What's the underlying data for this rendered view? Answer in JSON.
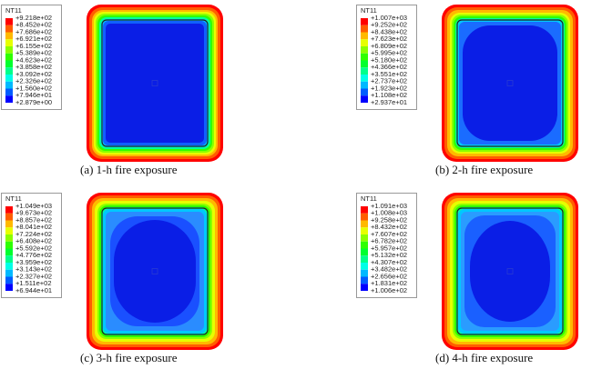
{
  "panels": [
    {
      "legend": {
        "title": "NT11",
        "labels": [
          "+9.218e+02",
          "+8.452e+02",
          "+7.686e+02",
          "+6.921e+02",
          "+6.155e+02",
          "+5.389e+02",
          "+4.623e+02",
          "+3.858e+02",
          "+3.092e+02",
          "+2.326e+02",
          "+1.560e+02",
          "+7.946e+01",
          "+2.879e+00"
        ]
      },
      "caption": "(a) 1-h fire exposure"
    },
    {
      "legend": {
        "title": "NT11",
        "labels": [
          "+1.007e+03",
          "+9.252e+02",
          "+8.438e+02",
          "+7.623e+02",
          "+6.809e+02",
          "+5.995e+02",
          "+5.180e+02",
          "+4.366e+02",
          "+3.551e+02",
          "+2.737e+02",
          "+1.923e+02",
          "+1.108e+02",
          "+2.937e+01"
        ]
      },
      "caption": "(b) 2-h fire exposure"
    },
    {
      "legend": {
        "title": "NT11",
        "labels": [
          "+1.049e+03",
          "+9.673e+02",
          "+8.857e+02",
          "+8.041e+02",
          "+7.224e+02",
          "+6.408e+02",
          "+5.592e+02",
          "+4.776e+02",
          "+3.959e+02",
          "+3.143e+02",
          "+2.327e+02",
          "+1.511e+02",
          "+6.944e+01"
        ]
      },
      "caption": "(c) 3-h fire exposure"
    },
    {
      "legend": {
        "title": "NT11",
        "labels": [
          "+1.091e+03",
          "+1.008e+03",
          "+9.258e+02",
          "+8.432e+02",
          "+7.607e+02",
          "+6.782e+02",
          "+5.957e+02",
          "+5.132e+02",
          "+4.307e+02",
          "+3.482e+02",
          "+2.656e+02",
          "+1.831e+02",
          "+1.006e+02"
        ]
      },
      "caption": "(d) 4-h fire exposure"
    }
  ]
}
